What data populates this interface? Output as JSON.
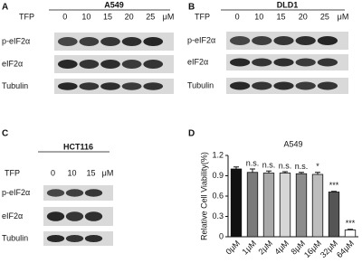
{
  "panels": [
    {
      "letter": "A",
      "title": "A549",
      "treatment": "TFP",
      "concentrations": [
        "0",
        "10",
        "15",
        "20",
        "25"
      ],
      "unit": "μM",
      "rows": [
        "p-eIF2α",
        "eIF2α",
        "Tubulin"
      ]
    },
    {
      "letter": "B",
      "title": "DLD1",
      "treatment": "TFP",
      "concentrations": [
        "0",
        "10",
        "15",
        "20",
        "25"
      ],
      "unit": "μM",
      "rows": [
        "p-eIF2α",
        "eIF2α",
        "Tubulin"
      ]
    },
    {
      "letter": "C",
      "title": "HCT116",
      "treatment": "TFP",
      "concentrations": [
        "0",
        "10",
        "15"
      ],
      "unit": "μM",
      "rows": [
        "p-eIF2α",
        "eIF2α",
        "Tubulin"
      ]
    }
  ],
  "chart_letter": "D",
  "chart_data": {
    "type": "bar",
    "title": "A549",
    "y_label": "Relative Cell Viability(%)",
    "categories": [
      "0μM",
      "1μM",
      "2μM",
      "4μM",
      "8μM",
      "16μM",
      "32μM",
      "64μM"
    ],
    "values": [
      1.0,
      0.95,
      0.94,
      0.94,
      0.93,
      0.92,
      0.66,
      0.1
    ],
    "errors": [
      0.03,
      0.05,
      0.03,
      0.02,
      0.02,
      0.03,
      0.01,
      0.01
    ],
    "annotations": [
      null,
      "n.s.",
      "n.s.",
      "n.s.",
      "n.s.",
      "*",
      "***",
      "***"
    ],
    "colors": [
      "#111111",
      "#7a7a7a",
      "#a9a9a9",
      "#d6d6d6",
      "#8c8c8c",
      "#bdbdbd",
      "#555555",
      "#ffffff"
    ],
    "ylim": [
      0,
      1.2
    ],
    "yticks": [
      0,
      0.3,
      0.6,
      0.9,
      1.2
    ]
  }
}
